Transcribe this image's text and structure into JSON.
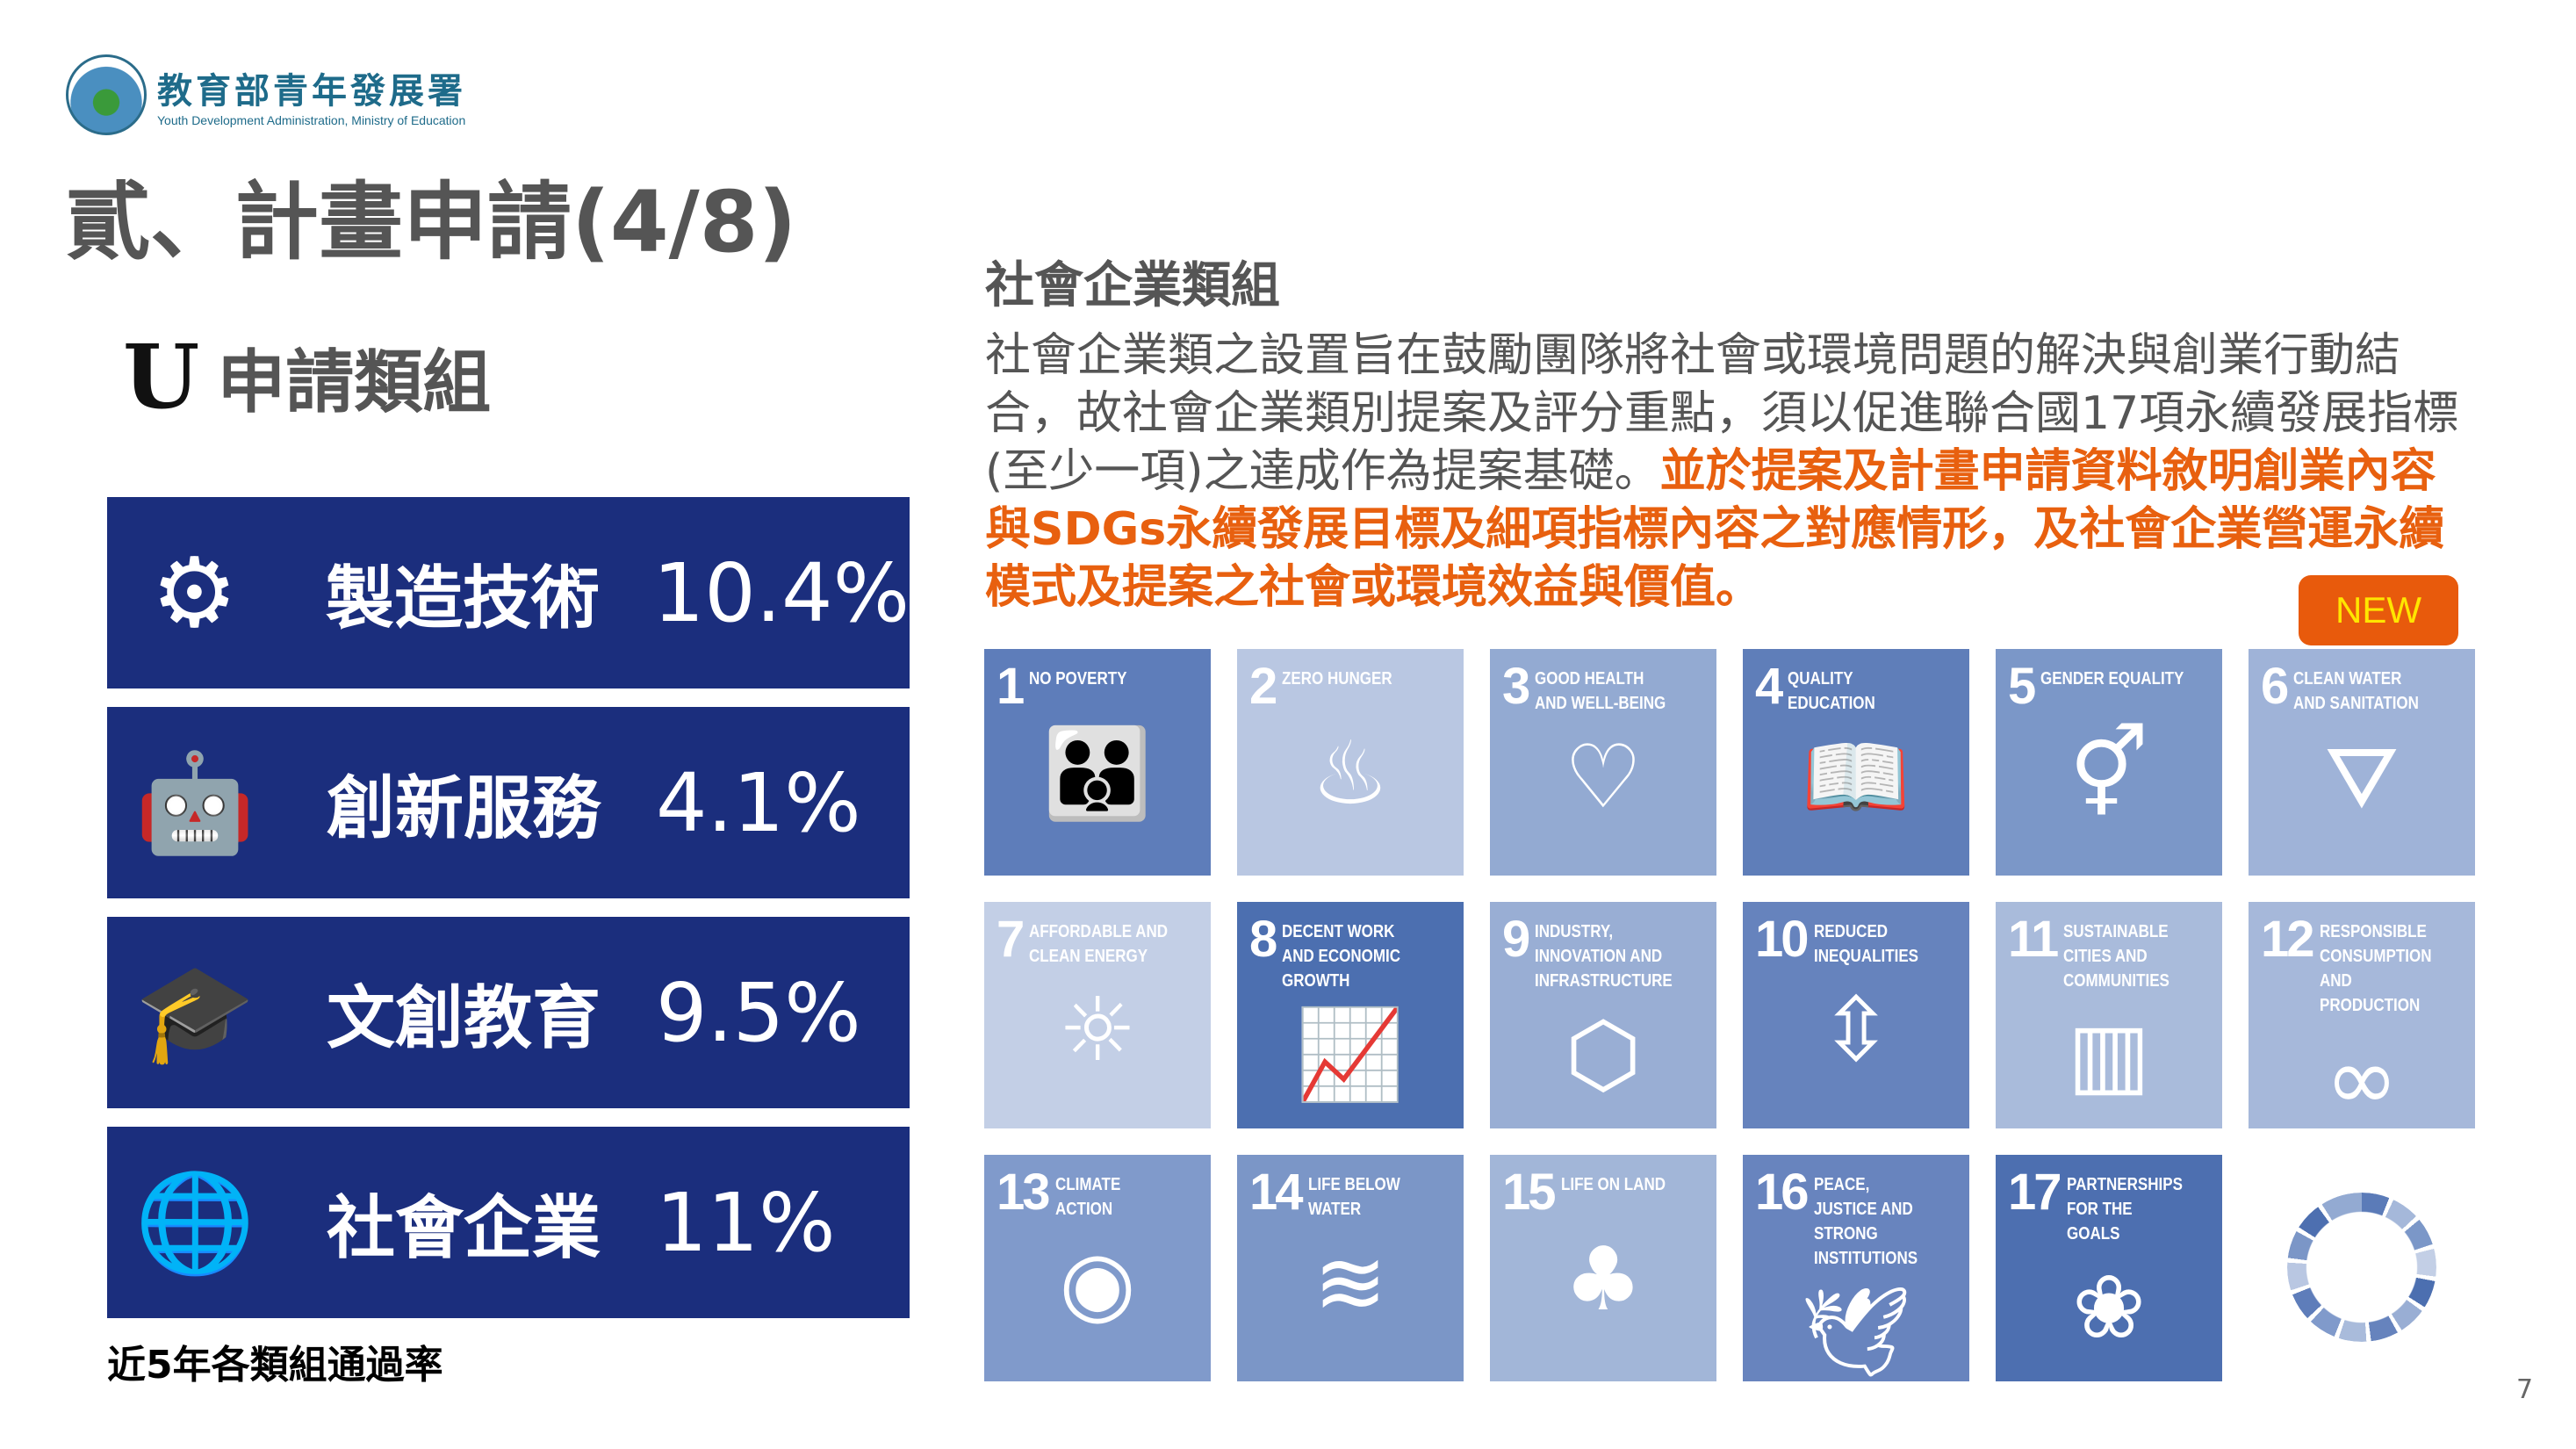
{
  "logo": {
    "name_cn": "教育部青年發展署",
    "name_en": "Youth Development Administration, Ministry of Education"
  },
  "title": "貳、計畫申請(4/8)",
  "subheading": "申請類組",
  "categories": [
    {
      "label": "製造技術",
      "rate": "10.4%",
      "icon": "gear-icon"
    },
    {
      "label": "創新服務",
      "rate": "4.1%",
      "icon": "robot-icon"
    },
    {
      "label": "文創教育",
      "rate": "9.5%",
      "icon": "graduation-cap-icon"
    },
    {
      "label": "社會企業",
      "rate": "11%",
      "icon": "globe-hands-icon"
    }
  ],
  "footnote": "近5年各類組通過率",
  "section": {
    "title": "社會企業類組",
    "text_normal": "社會企業類之設置旨在鼓勵團隊將社會或環境問題的解決與創業行動結合，故社會企業類別提案及評分重點，須以促進聯合國17項永續發展指標(至少一項)之達成作為提案基礎。",
    "text_highlight": "並於提案及計畫申請資料敘明創業內容與SDGs永續發展目標及細項指標內容之對應情形，及社會企業營運永續模式及提案之社會或環境效益與價值。",
    "badge": "NEW"
  },
  "colors": {
    "panel": "#1b2e7d",
    "highlight": "#e8600f",
    "badge": "#e85a0c",
    "badge_text": "#ffe600"
  },
  "sdgs": [
    {
      "n": "1",
      "t": "NO POVERTY",
      "c": "#5e7dba",
      "i": "👪"
    },
    {
      "n": "2",
      "t": "ZERO HUNGER",
      "c": "#b9c7e2",
      "i": "♨"
    },
    {
      "n": "3",
      "t": "GOOD HEALTH AND WELL-BEING",
      "c": "#93aad2",
      "i": "♡"
    },
    {
      "n": "4",
      "t": "QUALITY EDUCATION",
      "c": "#5f7eb9",
      "i": "📖"
    },
    {
      "n": "5",
      "t": "GENDER EQUALITY",
      "c": "#7b97c8",
      "i": "⚥"
    },
    {
      "n": "6",
      "t": "CLEAN WATER AND SANITATION",
      "c": "#9fb3d8",
      "i": "⛛"
    },
    {
      "n": "7",
      "t": "AFFORDABLE AND CLEAN ENERGY",
      "c": "#c3cfe6",
      "i": "☼"
    },
    {
      "n": "8",
      "t": "DECENT WORK AND ECONOMIC GROWTH",
      "c": "#4c6fb0",
      "i": "📈"
    },
    {
      "n": "9",
      "t": "INDUSTRY, INNOVATION AND INFRASTRUCTURE",
      "c": "#99aed4",
      "i": "⬡"
    },
    {
      "n": "10",
      "t": "REDUCED INEQUALITIES",
      "c": "#6683bd",
      "i": "⇳"
    },
    {
      "n": "11",
      "t": "SUSTAINABLE CITIES AND COMMUNITIES",
      "c": "#a9bbdb",
      "i": "▥"
    },
    {
      "n": "12",
      "t": "RESPONSIBLE CONSUMPTION AND PRODUCTION",
      "c": "#a6b8da",
      "i": "∞"
    },
    {
      "n": "13",
      "t": "CLIMATE ACTION",
      "c": "#809acb",
      "i": "◉"
    },
    {
      "n": "14",
      "t": "LIFE BELOW WATER",
      "c": "#7b96c7",
      "i": "≋"
    },
    {
      "n": "15",
      "t": "LIFE ON LAND",
      "c": "#a2b6d8",
      "i": "♣"
    },
    {
      "n": "16",
      "t": "PEACE, JUSTICE AND STRONG INSTITUTIONS",
      "c": "#6884be",
      "i": "🕊"
    },
    {
      "n": "17",
      "t": "PARTNERSHIPS FOR THE GOALS",
      "c": "#4d6fb0",
      "i": "❀"
    }
  ],
  "page_number": "7"
}
